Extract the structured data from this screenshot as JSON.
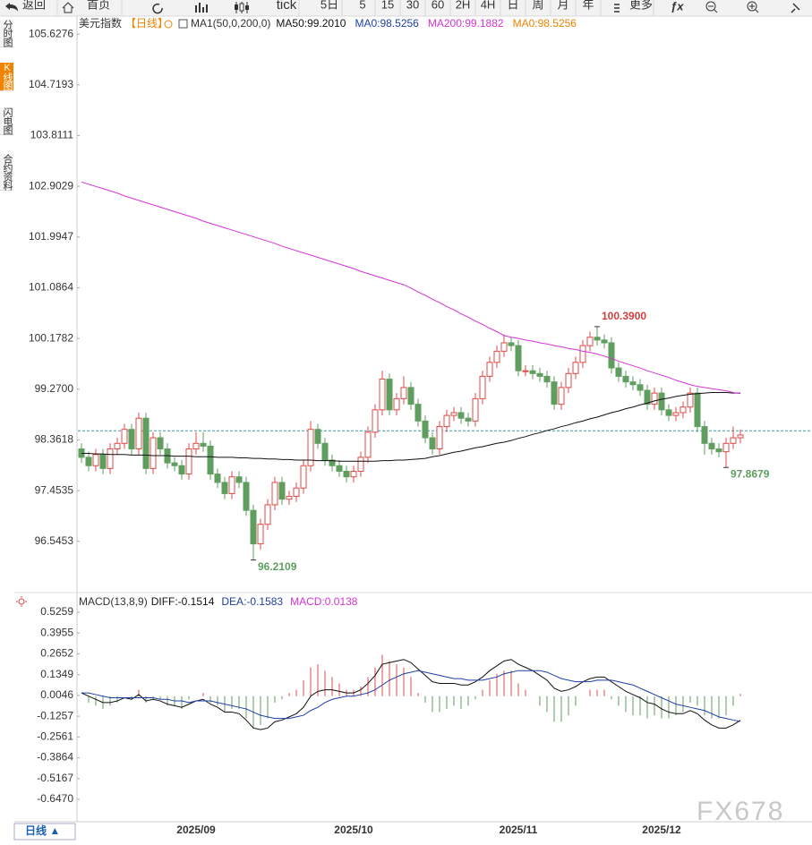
{
  "toolbar": {
    "items": [
      "返回",
      "首页",
      "tick",
      "5日",
      "5",
      "15",
      "30",
      "60",
      "2H",
      "4H",
      "日",
      "周",
      "月",
      "年",
      "更多"
    ]
  },
  "sidebar": [
    "分时图",
    "K线图",
    "闪电图",
    "合约资料"
  ],
  "chart_data": [
    {
      "type": "candlestick",
      "title": "美元指数",
      "period": "【日线】",
      "indicator": "MA1(50,0,200,0)",
      "legend": [
        {
          "name": "MA50:99.2010",
          "color": "#111111"
        },
        {
          "name": "MA0:98.5256",
          "color": "#1f3fa6"
        },
        {
          "name": "MA200:99.1882",
          "color": "#d633d6"
        },
        {
          "name": "MA0:98.5256",
          "color": "#f08300"
        }
      ],
      "categories": [
        null,
        null,
        null,
        null,
        null,
        null,
        null,
        null,
        null,
        null,
        null,
        null,
        null,
        null,
        null,
        null,
        "2025/09",
        null,
        null,
        null,
        null,
        null,
        null,
        null,
        null,
        null,
        null,
        null,
        null,
        null,
        null,
        null,
        null,
        null,
        null,
        null,
        null,
        null,
        "2025/10",
        null,
        null,
        null,
        null,
        null,
        null,
        null,
        null,
        null,
        null,
        null,
        null,
        null,
        null,
        null,
        null,
        null,
        null,
        null,
        null,
        null,
        null,
        "2025/11",
        null,
        null,
        null,
        null,
        null,
        null,
        null,
        null,
        null,
        null,
        null,
        null,
        null,
        null,
        null,
        null,
        null,
        null,
        null,
        "2025/12",
        null,
        null,
        null,
        null,
        null,
        null,
        null,
        null,
        null,
        null,
        null
      ],
      "open": [
        98.2,
        98.05,
        97.9,
        98.1,
        97.85,
        98.2,
        98.3,
        98.55,
        98.2,
        98.75,
        97.85,
        98.4,
        98.2,
        97.95,
        97.9,
        97.75,
        98.2,
        98.3,
        98.25,
        97.75,
        97.6,
        97.4,
        97.7,
        97.6,
        97.1,
        96.5,
        96.85,
        97.2,
        97.6,
        97.3,
        97.35,
        97.5,
        97.9,
        98.55,
        98.3,
        98.0,
        97.9,
        97.8,
        97.7,
        97.8,
        98.05,
        98.5,
        98.9,
        99.45,
        98.9,
        99.1,
        99.3,
        99.0,
        98.7,
        98.4,
        98.2,
        98.6,
        98.8,
        98.85,
        98.75,
        98.7,
        99.1,
        99.5,
        99.75,
        99.95,
        100.1,
        100.05,
        99.6,
        99.6,
        99.55,
        99.5,
        99.4,
        99.0,
        99.3,
        99.55,
        99.75,
        100.05,
        100.2,
        100.15,
        100.1,
        99.65,
        99.5,
        99.4,
        99.35,
        99.25,
        99.0,
        99.2,
        98.9,
        98.8,
        98.85,
        98.95,
        99.2,
        98.6,
        98.3,
        98.2,
        98.15,
        98.3,
        98.4
      ],
      "high": [
        98.3,
        98.15,
        98.2,
        98.2,
        98.3,
        98.4,
        98.65,
        98.65,
        98.85,
        98.85,
        98.5,
        98.5,
        98.3,
        98.05,
        98.0,
        98.3,
        98.5,
        98.5,
        98.35,
        97.85,
        97.7,
        97.8,
        97.8,
        97.7,
        97.2,
        96.95,
        97.3,
        97.7,
        97.7,
        97.45,
        97.6,
        98.0,
        98.7,
        98.65,
        98.4,
        98.1,
        98.0,
        97.9,
        97.9,
        98.15,
        98.6,
        99.0,
        99.6,
        99.55,
        99.2,
        99.5,
        99.4,
        99.1,
        98.8,
        98.5,
        98.7,
        98.9,
        98.95,
        98.95,
        98.85,
        99.2,
        99.6,
        99.85,
        100.05,
        100.25,
        100.2,
        100.15,
        99.7,
        99.7,
        99.65,
        99.6,
        99.5,
        99.4,
        99.65,
        99.85,
        100.15,
        100.3,
        100.39,
        100.25,
        100.2,
        99.75,
        99.6,
        99.5,
        99.45,
        99.35,
        99.3,
        99.3,
        99.0,
        98.95,
        99.05,
        99.3,
        99.3,
        98.7,
        98.4,
        98.3,
        98.4,
        98.6,
        98.55
      ],
      "low": [
        97.95,
        97.8,
        97.8,
        97.75,
        97.75,
        98.1,
        98.2,
        98.1,
        98.1,
        97.75,
        97.75,
        98.1,
        97.85,
        97.8,
        97.65,
        97.65,
        98.1,
        98.15,
        97.65,
        97.5,
        97.3,
        97.3,
        97.5,
        97.0,
        96.2109,
        96.4,
        96.75,
        97.1,
        97.2,
        97.2,
        97.25,
        97.4,
        97.8,
        98.2,
        97.9,
        97.8,
        97.7,
        97.6,
        97.6,
        97.7,
        97.95,
        98.4,
        98.8,
        98.8,
        98.8,
        99.0,
        98.9,
        98.6,
        98.3,
        98.1,
        98.1,
        98.5,
        98.7,
        98.65,
        98.6,
        98.6,
        99.0,
        99.4,
        99.65,
        99.85,
        99.95,
        99.5,
        99.5,
        99.45,
        99.4,
        99.3,
        98.9,
        98.9,
        99.2,
        99.45,
        99.65,
        99.95,
        100.05,
        100.0,
        99.55,
        99.4,
        99.3,
        99.25,
        99.15,
        98.9,
        98.9,
        98.8,
        98.7,
        98.7,
        98.75,
        98.85,
        98.5,
        98.1,
        98.1,
        98.05,
        97.8679,
        98.2,
        98.3
      ],
      "close": [
        98.05,
        97.9,
        98.1,
        97.85,
        98.2,
        98.3,
        98.55,
        98.2,
        98.75,
        97.85,
        98.4,
        98.2,
        97.95,
        97.9,
        97.75,
        98.2,
        98.3,
        98.25,
        97.75,
        97.6,
        97.4,
        97.7,
        97.6,
        97.1,
        96.5,
        96.85,
        97.2,
        97.6,
        97.3,
        97.35,
        97.5,
        97.9,
        98.55,
        98.3,
        98.0,
        97.9,
        97.8,
        97.7,
        97.8,
        98.05,
        98.5,
        98.9,
        99.45,
        98.9,
        99.1,
        99.3,
        99.0,
        98.7,
        98.4,
        98.2,
        98.6,
        98.8,
        98.85,
        98.75,
        98.7,
        99.1,
        99.5,
        99.75,
        99.95,
        100.1,
        100.05,
        99.6,
        99.6,
        99.55,
        99.5,
        99.4,
        99.0,
        99.3,
        99.55,
        99.75,
        100.05,
        100.2,
        100.15,
        100.1,
        99.65,
        99.5,
        99.4,
        99.35,
        99.25,
        99.0,
        99.2,
        98.9,
        98.8,
        98.85,
        98.95,
        99.2,
        98.6,
        98.3,
        98.2,
        98.15,
        98.3,
        98.4,
        98.45
      ],
      "up_color": "#e04848",
      "down_color": "#5e9e5e",
      "series": [
        {
          "color": "#111111",
          "values": [
            98.12,
            98.12,
            98.11,
            98.11,
            98.1,
            98.1,
            98.1,
            98.09,
            98.09,
            98.09,
            98.08,
            98.08,
            98.08,
            98.07,
            98.07,
            98.07,
            98.06,
            98.06,
            98.06,
            98.05,
            98.05,
            98.05,
            98.04,
            98.04,
            98.03,
            98.03,
            98.02,
            98.02,
            98.01,
            98.01,
            98.0,
            98.0,
            98.0,
            97.99,
            97.99,
            97.99,
            97.98,
            97.98,
            97.98,
            97.98,
            97.98,
            97.98,
            97.99,
            97.99,
            98.0,
            98.0,
            98.01,
            98.02,
            98.03,
            98.06,
            98.08,
            98.11,
            98.14,
            98.16,
            98.19,
            98.22,
            98.24,
            98.27,
            98.3,
            98.32,
            98.35,
            98.39,
            98.42,
            98.46,
            98.49,
            98.53,
            98.56,
            98.6,
            98.63,
            98.67,
            98.7,
            98.74,
            98.77,
            98.81,
            98.85,
            98.88,
            98.92,
            98.95,
            98.99,
            99.02,
            99.06,
            99.09,
            99.11,
            99.14,
            99.16,
            99.18,
            99.19,
            99.2,
            99.21,
            99.21,
            99.21,
            99.2,
            99.2
          ]
        },
        {
          "color": "#d633d6",
          "values": [
            102.98,
            102.94,
            102.9,
            102.86,
            102.82,
            102.78,
            102.73,
            102.69,
            102.65,
            102.61,
            102.57,
            102.53,
            102.49,
            102.45,
            102.41,
            102.37,
            102.33,
            102.28,
            102.24,
            102.2,
            102.16,
            102.12,
            102.08,
            102.04,
            102.0,
            101.96,
            101.92,
            101.88,
            101.83,
            101.79,
            101.75,
            101.71,
            101.67,
            101.63,
            101.59,
            101.55,
            101.51,
            101.47,
            101.43,
            101.38,
            101.34,
            101.3,
            101.26,
            101.22,
            101.18,
            101.14,
            101.08,
            101.01,
            100.95,
            100.88,
            100.82,
            100.75,
            100.69,
            100.62,
            100.56,
            100.49,
            100.43,
            100.36,
            100.3,
            100.23,
            100.2,
            100.18,
            100.15,
            100.13,
            100.1,
            100.08,
            100.05,
            100.03,
            100.0,
            99.98,
            99.95,
            99.93,
            99.9,
            99.86,
            99.82,
            99.77,
            99.73,
            99.69,
            99.65,
            99.6,
            99.56,
            99.52,
            99.48,
            99.43,
            99.39,
            99.35,
            99.32,
            99.3,
            99.28,
            99.26,
            99.24,
            99.21,
            99.19
          ]
        }
      ],
      "last_price": 98.5256,
      "last_price_color": "#3a9aa0",
      "annotations": [
        {
          "text": "100.3900",
          "color": "#d04040"
        },
        {
          "text": "96.2109",
          "color": "#5e9e5e"
        },
        {
          "text": "97.8679",
          "color": "#5e9e5e"
        }
      ],
      "ylim": [
        95.66,
        105.95
      ],
      "yticks": [
        105.6276,
        104.7193,
        103.8111,
        102.9029,
        101.9947,
        101.0864,
        100.1782,
        {
          "value": 99.27,
          "label": "99.2700"
        },
        98.3618,
        97.4535,
        96.5453
      ]
    },
    {
      "type": "macd",
      "title": "MACD(13,8,9)",
      "series": [
        {
          "name": "DIFF:-0.1514",
          "color": "#111111",
          "values": [
            0.02,
            0.0,
            -0.02,
            -0.04,
            -0.04,
            -0.03,
            -0.01,
            -0.02,
            0.01,
            -0.03,
            -0.02,
            -0.03,
            -0.05,
            -0.06,
            -0.07,
            -0.05,
            -0.03,
            -0.02,
            -0.05,
            -0.07,
            -0.1,
            -0.1,
            -0.11,
            -0.15,
            -0.2,
            -0.21,
            -0.2,
            -0.16,
            -0.15,
            -0.13,
            -0.11,
            -0.07,
            0.0,
            0.03,
            0.04,
            0.04,
            0.03,
            0.02,
            0.02,
            0.04,
            0.08,
            0.13,
            0.2,
            0.21,
            0.22,
            0.23,
            0.21,
            0.17,
            0.13,
            0.09,
            0.08,
            0.08,
            0.08,
            0.07,
            0.07,
            0.09,
            0.12,
            0.16,
            0.19,
            0.22,
            0.23,
            0.2,
            0.18,
            0.16,
            0.13,
            0.1,
            0.05,
            0.03,
            0.04,
            0.06,
            0.09,
            0.11,
            0.12,
            0.12,
            0.09,
            0.06,
            0.03,
            0.01,
            -0.01,
            -0.04,
            -0.05,
            -0.08,
            -0.1,
            -0.11,
            -0.11,
            -0.09,
            -0.11,
            -0.15,
            -0.18,
            -0.2,
            -0.2,
            -0.18,
            -0.1514
          ]
        },
        {
          "name": "DEA:-0.1583",
          "color": "#1f3fa6",
          "values": [
            0.02,
            0.02,
            0.01,
            0.0,
            -0.01,
            -0.01,
            -0.01,
            -0.01,
            -0.01,
            -0.01,
            -0.01,
            -0.02,
            -0.02,
            -0.03,
            -0.03,
            -0.04,
            -0.03,
            -0.03,
            -0.03,
            -0.04,
            -0.05,
            -0.06,
            -0.07,
            -0.08,
            -0.1,
            -0.12,
            -0.13,
            -0.14,
            -0.14,
            -0.14,
            -0.13,
            -0.12,
            -0.09,
            -0.07,
            -0.04,
            -0.02,
            -0.01,
            0.0,
            0.0,
            0.01,
            0.02,
            0.04,
            0.07,
            0.1,
            0.12,
            0.14,
            0.15,
            0.16,
            0.15,
            0.14,
            0.13,
            0.12,
            0.11,
            0.11,
            0.1,
            0.1,
            0.1,
            0.11,
            0.12,
            0.14,
            0.15,
            0.16,
            0.16,
            0.16,
            0.16,
            0.15,
            0.13,
            0.11,
            0.1,
            0.09,
            0.09,
            0.09,
            0.1,
            0.1,
            0.1,
            0.09,
            0.08,
            0.07,
            0.05,
            0.03,
            0.01,
            -0.01,
            -0.03,
            -0.05,
            -0.06,
            -0.07,
            -0.08,
            -0.09,
            -0.11,
            -0.13,
            -0.14,
            -0.15,
            -0.1583
          ]
        },
        {
          "name": "MACD:0.0138",
          "color": "#d633d6",
          "up_color": "#e04848",
          "down_color": "#5e9e5e",
          "values": [
            0,
            -0.04,
            -0.06,
            -0.08,
            -0.06,
            -0.04,
            0,
            -0.02,
            0.04,
            -0.04,
            -0.02,
            -0.02,
            -0.06,
            -0.06,
            -0.08,
            -0.02,
            0,
            0.02,
            -0.04,
            -0.06,
            -0.1,
            -0.08,
            -0.08,
            -0.14,
            -0.2,
            -0.18,
            -0.14,
            -0.04,
            -0.02,
            0.02,
            0.04,
            0.1,
            0.18,
            0.2,
            0.16,
            0.12,
            0.08,
            0.04,
            0.04,
            0.06,
            0.12,
            0.18,
            0.26,
            0.22,
            0.2,
            0.18,
            0.12,
            0.02,
            -0.04,
            -0.1,
            -0.1,
            -0.08,
            -0.06,
            -0.08,
            -0.06,
            -0.02,
            0.04,
            0.1,
            0.14,
            0.16,
            0.16,
            0.08,
            0.04,
            0,
            -0.06,
            -0.1,
            -0.16,
            -0.16,
            -0.12,
            -0.06,
            0,
            0.04,
            0.04,
            0.04,
            -0.02,
            -0.06,
            -0.1,
            -0.12,
            -0.12,
            -0.14,
            -0.12,
            -0.14,
            -0.14,
            -0.12,
            -0.1,
            -0.04,
            -0.06,
            -0.12,
            -0.14,
            -0.14,
            -0.12,
            -0.06,
            0.0138
          ]
        }
      ],
      "ylim": [
        -0.7873,
        0.6325
      ],
      "yticks": [
        0.5259,
        0.3955,
        0.2652,
        0.1349,
        0.0046,
        -0.1257,
        -0.2561,
        -0.3864,
        -0.5167,
        {
          "value": -0.647,
          "label": "-0.6470"
        }
      ]
    }
  ],
  "footer": {
    "period": "日线 ▲",
    "watermark": "FX678"
  }
}
